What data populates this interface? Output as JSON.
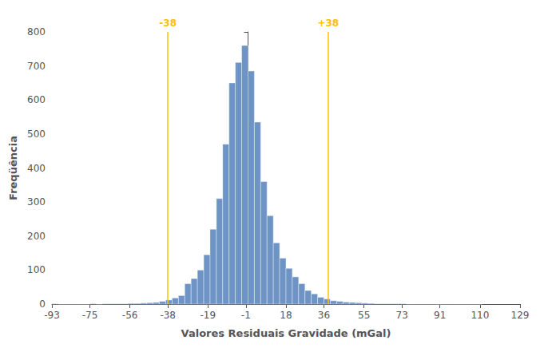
{
  "chart_data": {
    "type": "histogram",
    "xlabel": "Valores Residuais Gravidade (mGal)",
    "ylabel": "Freqüência",
    "bins": [
      -93,
      -90,
      -87,
      -84,
      -81,
      -78,
      -75,
      -72,
      -69,
      -66,
      -63,
      -60,
      -57,
      -54,
      -51,
      -48,
      -45,
      -42,
      -39,
      -36,
      -33,
      -30,
      -27,
      -24,
      -21,
      -18,
      -15,
      -12,
      -9,
      -6,
      -3,
      0,
      3,
      6,
      9,
      12,
      15,
      18,
      21,
      24,
      27,
      30,
      33,
      36,
      39,
      42,
      45,
      48,
      51,
      54,
      57,
      60,
      63,
      66,
      69,
      72,
      75,
      78,
      81,
      84,
      87,
      90,
      93,
      96,
      99,
      102,
      105,
      108,
      111
    ],
    "counts": [
      1,
      0,
      0,
      0,
      0,
      0,
      1,
      0,
      1,
      1,
      1,
      1,
      2,
      2,
      3,
      4,
      5,
      8,
      12,
      18,
      25,
      60,
      75,
      100,
      145,
      220,
      310,
      470,
      650,
      710,
      760,
      685,
      535,
      360,
      260,
      180,
      135,
      105,
      80,
      60,
      40,
      30,
      20,
      15,
      10,
      8,
      6,
      5,
      4,
      3,
      2,
      1,
      1,
      1,
      1,
      1,
      0,
      0,
      0,
      0,
      0,
      0,
      0,
      0,
      0,
      0,
      0,
      0
    ],
    "color": "#6E93C5",
    "vlines": [
      {
        "x": -38,
        "label": "-38",
        "color": "#FFC000"
      },
      {
        "x": 38,
        "label": "+38",
        "color": "#FFC000"
      }
    ],
    "xlim": [
      -93,
      129
    ],
    "xticks": [
      -93,
      -75,
      -56,
      -38,
      -19,
      -1,
      18,
      36,
      55,
      73,
      91,
      110,
      129
    ],
    "ylim": [
      0,
      800
    ],
    "yticks": [
      0,
      100,
      200,
      300,
      400,
      500,
      600,
      700,
      800
    ],
    "grid": false
  }
}
